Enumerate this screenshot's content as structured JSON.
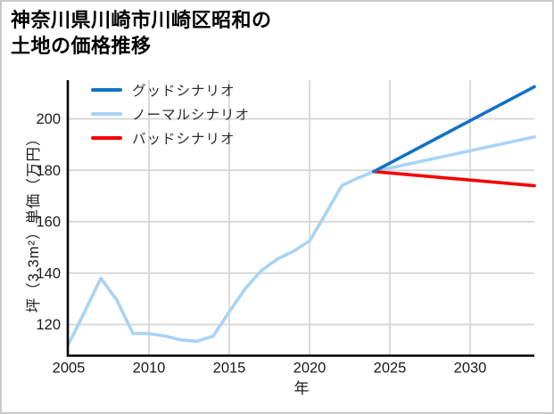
{
  "figure": {
    "title_line1": "神奈川県川崎市川崎区昭和の",
    "title_line2": "土地の価格推移",
    "background": "#ffffff",
    "border_color": "#c9c9c9"
  },
  "chart_data": {
    "type": "line",
    "title": "神奈川県川崎市川崎区昭和の土地の価格推移",
    "xlabel": "年",
    "ylabel": "坪（3.3m²）単価（万円）",
    "x_ticks": [
      2005,
      2010,
      2015,
      2020,
      2025,
      2030
    ],
    "y_ticks": [
      120,
      140,
      160,
      180,
      200
    ],
    "xlim": [
      2005,
      2034
    ],
    "ylim": [
      108,
      215
    ],
    "grid": true,
    "legend_position": "upper-left-inside",
    "grid_color": "#d5d5d5",
    "axis_color": "#000000",
    "tick_label_color": "#1a1a1a",
    "series": [
      {
        "name": "グッドシナリオ",
        "color": "#1272c4",
        "x": [
          2024,
          2034
        ],
        "values": [
          179.5,
          212.5
        ]
      },
      {
        "name": "ノーマルシナリオ",
        "color": "#a9d3f6",
        "x": [
          2005,
          2006,
          2007,
          2008,
          2009,
          2010,
          2011,
          2012,
          2013,
          2014,
          2015,
          2016,
          2017,
          2018,
          2019,
          2020,
          2021,
          2022,
          2023,
          2024,
          2034
        ],
        "values": [
          112.5,
          125,
          138,
          129.5,
          116.5,
          116.5,
          115.5,
          114,
          113.5,
          115.5,
          125,
          134,
          141,
          145.5,
          148.5,
          152.5,
          163,
          174,
          177,
          179.5,
          193
        ]
      },
      {
        "name": "バッドシナリオ",
        "color": "#f40000",
        "x": [
          2024,
          2034
        ],
        "values": [
          179.5,
          174
        ]
      }
    ]
  }
}
